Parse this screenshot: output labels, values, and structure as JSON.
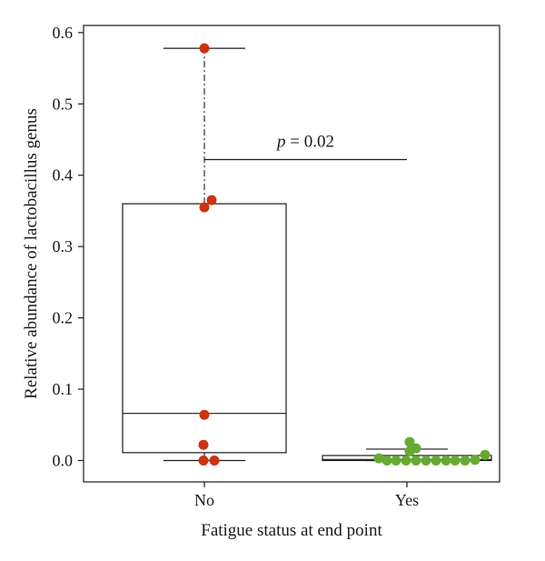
{
  "chart_data": {
    "type": "box",
    "xlabel": "Fatigue status at end point",
    "ylabel": "Relative abundance of lactobacillus genus",
    "ylim": [
      -0.03,
      0.61
    ],
    "yticks": [
      0.0,
      0.1,
      0.2,
      0.3,
      0.4,
      0.5,
      0.6
    ],
    "ytick_labels": [
      "0.0",
      "0.1",
      "0.2",
      "0.3",
      "0.4",
      "0.5",
      "0.6"
    ],
    "categories": [
      "No",
      "Yes"
    ],
    "groups": [
      {
        "name": "No",
        "color": "#cc3311",
        "box": {
          "whisker_low": 0.0,
          "q1": 0.011,
          "median": 0.066,
          "q3": 0.36,
          "whisker_high": 0.578
        },
        "points": [
          0.0,
          0.0,
          0.022,
          0.064,
          0.355,
          0.365,
          0.578
        ]
      },
      {
        "name": "Yes",
        "color": "#66aa33",
        "box": {
          "whisker_low": 0.0,
          "q1": 0.0,
          "median": 0.0015,
          "q3": 0.007,
          "whisker_high": 0.016
        },
        "points": [
          0.003,
          0.0,
          0.0,
          0.0,
          0.0,
          0.0,
          0.0,
          0.0,
          0.0,
          0.0,
          0.001,
          0.008,
          0.013,
          0.017,
          0.026
        ]
      }
    ],
    "annotation": {
      "prefix": "p",
      "text": " = 0.02",
      "y": 0.422
    }
  }
}
